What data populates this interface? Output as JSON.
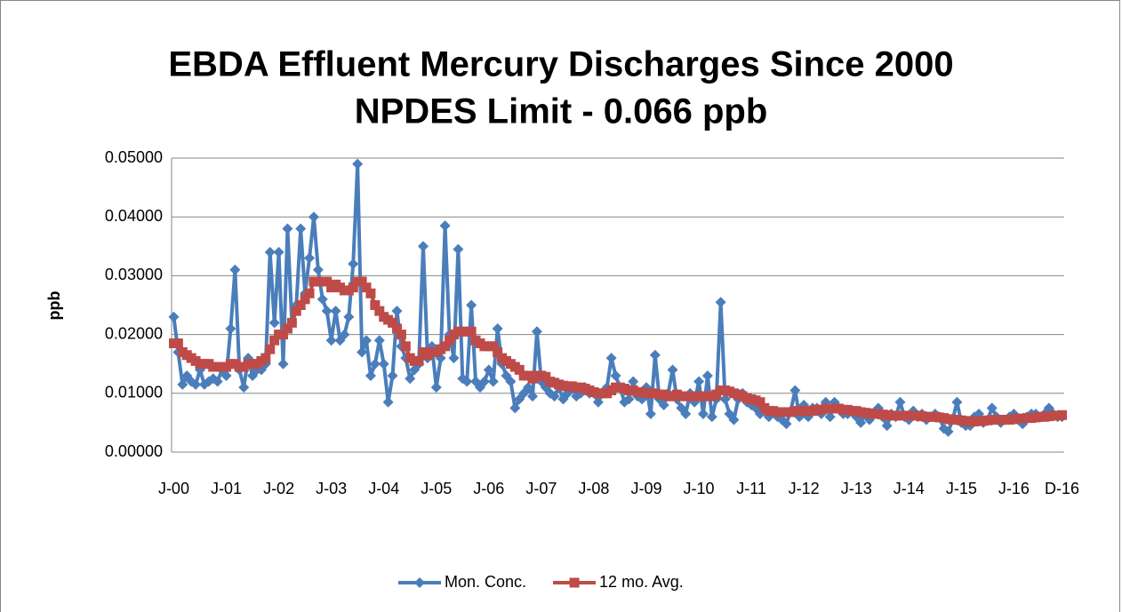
{
  "chart_data": {
    "type": "line",
    "title": "EBDA Effluent Mercury Discharges Since 2000",
    "subtitle": "NPDES Limit - 0.066 ppb",
    "y_label": "ppb",
    "categories": [
      "J-00",
      null,
      null,
      null,
      null,
      null,
      null,
      null,
      null,
      null,
      null,
      null,
      "J-01",
      null,
      null,
      null,
      null,
      null,
      null,
      null,
      null,
      null,
      null,
      null,
      "J-02",
      null,
      null,
      null,
      null,
      null,
      null,
      null,
      null,
      null,
      null,
      null,
      "J-03",
      null,
      null,
      null,
      null,
      null,
      null,
      null,
      null,
      null,
      null,
      null,
      "J-04",
      null,
      null,
      null,
      null,
      null,
      null,
      null,
      null,
      null,
      null,
      null,
      "J-05",
      null,
      null,
      null,
      null,
      null,
      null,
      null,
      null,
      null,
      null,
      null,
      "J-06",
      null,
      null,
      null,
      null,
      null,
      null,
      null,
      null,
      null,
      null,
      null,
      "J-07",
      null,
      null,
      null,
      null,
      null,
      null,
      null,
      null,
      null,
      null,
      null,
      "J-08",
      null,
      null,
      null,
      null,
      null,
      null,
      null,
      null,
      null,
      null,
      null,
      "J-09",
      null,
      null,
      null,
      null,
      null,
      null,
      null,
      null,
      null,
      null,
      null,
      "J-10",
      null,
      null,
      null,
      null,
      null,
      null,
      null,
      null,
      null,
      null,
      null,
      "J-11",
      null,
      null,
      null,
      null,
      null,
      null,
      null,
      null,
      null,
      null,
      null,
      "J-12",
      null,
      null,
      null,
      null,
      null,
      null,
      null,
      null,
      null,
      null,
      null,
      "J-13",
      null,
      null,
      null,
      null,
      null,
      null,
      null,
      null,
      null,
      null,
      null,
      "J-14",
      null,
      null,
      null,
      null,
      null,
      null,
      null,
      null,
      null,
      null,
      null,
      "J-15",
      null,
      null,
      null,
      null,
      null,
      null,
      null,
      null,
      null,
      null,
      null,
      "J-16",
      null,
      null,
      null,
      null,
      null,
      null,
      null,
      null,
      null,
      null,
      "D-16"
    ],
    "series": [
      {
        "name": "Mon. Conc.",
        "color": "#4a7ebb",
        "marker": "diamond",
        "values": [
          0.023,
          0.017,
          0.0115,
          0.013,
          0.012,
          0.0115,
          0.014,
          0.0115,
          0.012,
          0.0125,
          0.012,
          0.014,
          0.013,
          0.021,
          0.031,
          0.014,
          0.011,
          0.016,
          0.013,
          0.014,
          0.014,
          0.015,
          0.034,
          0.022,
          0.034,
          0.015,
          0.038,
          0.022,
          0.025,
          0.038,
          0.027,
          0.033,
          0.04,
          0.031,
          0.026,
          0.024,
          0.019,
          0.024,
          0.019,
          0.02,
          0.023,
          0.032,
          0.049,
          0.017,
          0.019,
          0.013,
          0.015,
          0.019,
          0.015,
          0.0085,
          0.013,
          0.024,
          0.018,
          0.016,
          0.0125,
          0.014,
          0.015,
          0.035,
          0.016,
          0.018,
          0.011,
          0.016,
          0.0385,
          0.02,
          0.016,
          0.0345,
          0.0125,
          0.012,
          0.025,
          0.012,
          0.011,
          0.012,
          0.014,
          0.012,
          0.021,
          0.015,
          0.013,
          0.012,
          0.0075,
          0.009,
          0.01,
          0.011,
          0.0095,
          0.0205,
          0.012,
          0.011,
          0.01,
          0.0095,
          0.011,
          0.009,
          0.01,
          0.011,
          0.0095,
          0.01,
          0.011,
          0.01,
          0.01,
          0.0085,
          0.01,
          0.011,
          0.016,
          0.013,
          0.011,
          0.0085,
          0.009,
          0.012,
          0.0095,
          0.009,
          0.011,
          0.0065,
          0.0165,
          0.009,
          0.008,
          0.01,
          0.014,
          0.009,
          0.0075,
          0.0065,
          0.01,
          0.0085,
          0.012,
          0.0065,
          0.013,
          0.006,
          0.009,
          0.0255,
          0.009,
          0.0065,
          0.0055,
          0.009,
          0.01,
          0.0085,
          0.008,
          0.0075,
          0.0065,
          0.0075,
          0.006,
          0.007,
          0.006,
          0.0055,
          0.0048,
          0.007,
          0.0105,
          0.006,
          0.008,
          0.006,
          0.0075,
          0.0075,
          0.0065,
          0.0085,
          0.006,
          0.0085,
          0.0075,
          0.0065,
          0.0065,
          0.007,
          0.006,
          0.005,
          0.0065,
          0.0055,
          0.0065,
          0.0075,
          0.006,
          0.0045,
          0.0065,
          0.006,
          0.0085,
          0.006,
          0.0055,
          0.007,
          0.006,
          0.0065,
          0.0055,
          0.006,
          0.0065,
          0.006,
          0.004,
          0.0035,
          0.0055,
          0.0085,
          0.005,
          0.0045,
          0.0045,
          0.006,
          0.0065,
          0.005,
          0.0055,
          0.0075,
          0.006,
          0.005,
          0.0055,
          0.006,
          0.0065,
          0.0055,
          0.0048,
          0.006,
          0.0065,
          0.0065,
          0.006,
          0.0065,
          0.0075,
          0.0065,
          0.006,
          0.006
        ]
      },
      {
        "name": "12 mo. Avg.",
        "color": "#be4b48",
        "marker": "square",
        "values": [
          0.0185,
          0.0185,
          0.017,
          0.0165,
          0.016,
          0.0155,
          0.015,
          0.015,
          0.015,
          0.0145,
          0.0145,
          0.0145,
          0.0145,
          0.015,
          0.015,
          0.0145,
          0.0145,
          0.015,
          0.015,
          0.015,
          0.0155,
          0.016,
          0.0175,
          0.019,
          0.02,
          0.02,
          0.021,
          0.022,
          0.024,
          0.025,
          0.026,
          0.027,
          0.029,
          0.029,
          0.029,
          0.029,
          0.028,
          0.0285,
          0.028,
          0.0275,
          0.0275,
          0.028,
          0.029,
          0.029,
          0.028,
          0.027,
          0.025,
          0.024,
          0.023,
          0.0225,
          0.022,
          0.021,
          0.02,
          0.018,
          0.016,
          0.0155,
          0.0155,
          0.017,
          0.0165,
          0.017,
          0.017,
          0.0175,
          0.018,
          0.019,
          0.02,
          0.0205,
          0.0205,
          0.0205,
          0.0205,
          0.019,
          0.0185,
          0.018,
          0.018,
          0.018,
          0.017,
          0.016,
          0.0155,
          0.015,
          0.0145,
          0.014,
          0.013,
          0.013,
          0.0125,
          0.013,
          0.013,
          0.0128,
          0.012,
          0.0118,
          0.0115,
          0.0113,
          0.0112,
          0.0112,
          0.011,
          0.011,
          0.0108,
          0.0105,
          0.0102,
          0.01,
          0.01,
          0.01,
          0.0105,
          0.011,
          0.011,
          0.0108,
          0.0105,
          0.0105,
          0.0102,
          0.0102,
          0.01,
          0.01,
          0.01,
          0.0098,
          0.0098,
          0.0095,
          0.0095,
          0.0098,
          0.0095,
          0.0095,
          0.0095,
          0.0095,
          0.0095,
          0.0095,
          0.0095,
          0.0095,
          0.0098,
          0.0105,
          0.0105,
          0.0103,
          0.01,
          0.0098,
          0.0095,
          0.0092,
          0.009,
          0.0088,
          0.0085,
          0.0075,
          0.007,
          0.007,
          0.0068,
          0.0068,
          0.0068,
          0.0068,
          0.007,
          0.007,
          0.007,
          0.007,
          0.007,
          0.0072,
          0.0072,
          0.0074,
          0.0074,
          0.0074,
          0.0074,
          0.0072,
          0.0072,
          0.007,
          0.007,
          0.0068,
          0.0067,
          0.0066,
          0.0065,
          0.0065,
          0.0064,
          0.0063,
          0.0062,
          0.0062,
          0.0062,
          0.0062,
          0.0062,
          0.0062,
          0.0062,
          0.0061,
          0.006,
          0.006,
          0.006,
          0.0059,
          0.0058,
          0.0056,
          0.0055,
          0.0055,
          0.0054,
          0.0053,
          0.0052,
          0.0052,
          0.0053,
          0.0053,
          0.0054,
          0.0055,
          0.0055,
          0.0055,
          0.0055,
          0.0055,
          0.0056,
          0.0057,
          0.0057,
          0.0058,
          0.0058,
          0.0059,
          0.006,
          0.006,
          0.0061,
          0.0062,
          0.0062,
          0.0063
        ]
      }
    ],
    "ylim": [
      0,
      0.05
    ],
    "yticks": [
      {
        "value": 0,
        "label": "0.00000"
      },
      {
        "value": 0.01,
        "label": "0.01000"
      },
      {
        "value": 0.02,
        "label": "0.02000"
      },
      {
        "value": 0.03,
        "label": "0.03000"
      },
      {
        "value": 0.04,
        "label": "0.04000"
      },
      {
        "value": 0.05,
        "label": "0.05000"
      }
    ],
    "grid": true,
    "legend": "bottom"
  }
}
